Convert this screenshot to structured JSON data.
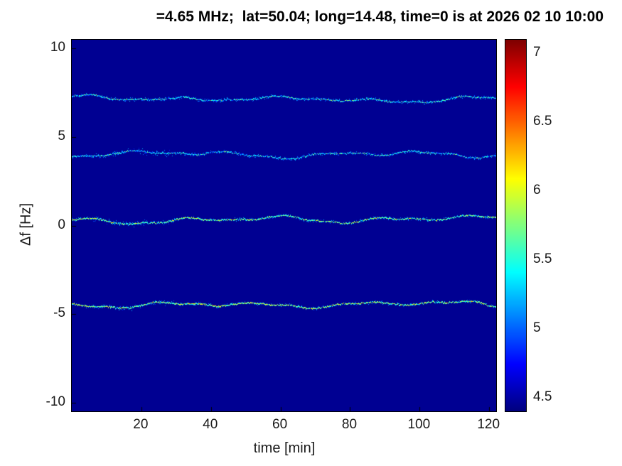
{
  "chart_data": {
    "type": "heatmap",
    "title": "=4.65 MHz;  lat=50.04; long=14.48, time=0 is at 2026 02 10 10:00",
    "xlabel": "time [min]",
    "ylabel": "Δf [Hz]",
    "xlim": [
      0,
      122
    ],
    "ylim": [
      -10.5,
      10.5
    ],
    "xticks": [
      20,
      40,
      60,
      80,
      100,
      120
    ],
    "yticks": [
      10,
      5,
      0,
      -5,
      -10
    ],
    "grid": false,
    "background_value": 4.45,
    "colorbar": {
      "position": "right",
      "colormap": "jet",
      "min": 4.4,
      "max": 7.1,
      "ticks": [
        7,
        6.5,
        6,
        5.5,
        5,
        4.5
      ]
    },
    "spectral_lines": [
      {
        "center_hz": 7.2,
        "intensity": 5.45,
        "early_noise": false
      },
      {
        "center_hz": 4.1,
        "intensity": 5.4,
        "early_noise": true
      },
      {
        "center_hz": 0.3,
        "intensity": 5.75,
        "early_noise": true
      },
      {
        "center_hz": -4.4,
        "intensity": 5.85,
        "early_noise": true
      }
    ]
  }
}
